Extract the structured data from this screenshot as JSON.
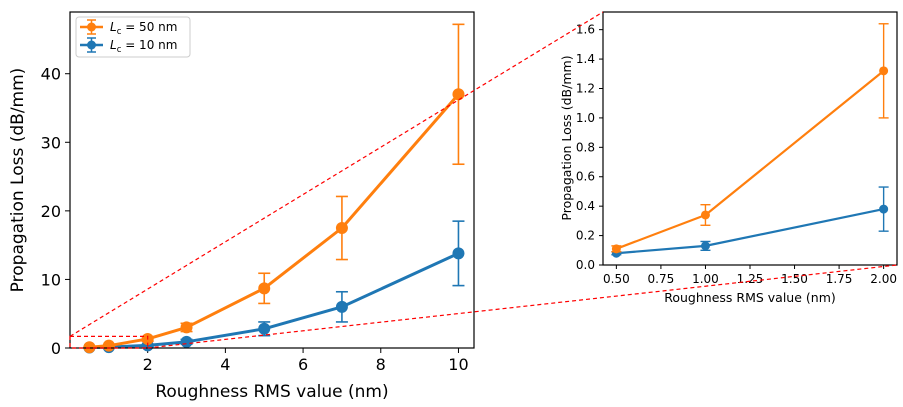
{
  "chart_data": [
    {
      "type": "line",
      "panel": "main",
      "xlabel": "Roughness RMS value (nm)",
      "ylabel": "Propagation Loss (dB/mm)",
      "xlim": [
        0,
        10.4
      ],
      "ylim": [
        0,
        49
      ],
      "xticks": [
        2,
        4,
        6,
        8,
        10
      ],
      "yticks": [
        0,
        10,
        20,
        30,
        40
      ],
      "legend_position": "upper left",
      "grid": false,
      "series": [
        {
          "name_main": "L",
          "name_sub": "c",
          "name_rest": " = 50 nm",
          "color": "#ff7f0e",
          "x": [
            0.5,
            1,
            2,
            3,
            5,
            7,
            10
          ],
          "y": [
            0.11,
            0.34,
            1.32,
            3.0,
            8.7,
            17.5,
            37.0
          ],
          "yerr": [
            0.02,
            0.07,
            0.32,
            0.6,
            2.2,
            4.6,
            10.2
          ]
        },
        {
          "name_main": "L",
          "name_sub": "c",
          "name_rest": " = 10 nm",
          "color": "#1f77b4",
          "x": [
            0.5,
            1,
            2,
            3,
            5,
            7,
            10
          ],
          "y": [
            0.08,
            0.13,
            0.38,
            0.9,
            2.8,
            6.0,
            13.8
          ],
          "yerr": [
            0.01,
            0.03,
            0.15,
            0.35,
            1.0,
            2.2,
            4.7
          ]
        }
      ],
      "zoom_region": {
        "xlim": [
          0,
          2
        ],
        "ylim": [
          0,
          1.7
        ]
      }
    },
    {
      "type": "line",
      "panel": "inset",
      "xlabel": "Roughness RMS value (nm)",
      "ylabel": "Propagation Loss (dB/mm)",
      "xlim": [
        0.425,
        2.075
      ],
      "ylim": [
        0,
        1.72
      ],
      "xticks": [
        0.5,
        0.75,
        1.0,
        1.25,
        1.5,
        1.75,
        2.0
      ],
      "xtick_labels": [
        "0.50",
        "0.75",
        "1.00",
        "1.25",
        "1.50",
        "1.75",
        "2.00"
      ],
      "yticks": [
        0.0,
        0.2,
        0.4,
        0.6,
        0.8,
        1.0,
        1.2,
        1.4,
        1.6
      ],
      "ytick_labels": [
        "0.0",
        "0.2",
        "0.4",
        "0.6",
        "0.8",
        "1.0",
        "1.2",
        "1.4",
        "1.6"
      ],
      "grid": false,
      "series": [
        {
          "color": "#ff7f0e",
          "x": [
            0.5,
            1,
            2
          ],
          "y": [
            0.11,
            0.34,
            1.32
          ],
          "yerr": [
            0.02,
            0.07,
            0.32
          ]
        },
        {
          "color": "#1f77b4",
          "x": [
            0.5,
            1,
            2
          ],
          "y": [
            0.08,
            0.13,
            0.38
          ],
          "yerr": [
            0.01,
            0.03,
            0.15
          ]
        }
      ]
    }
  ],
  "colors": {
    "series_orange": "#ff7f0e",
    "series_blue": "#1f77b4",
    "zoom_indicator": "#ff0000"
  }
}
